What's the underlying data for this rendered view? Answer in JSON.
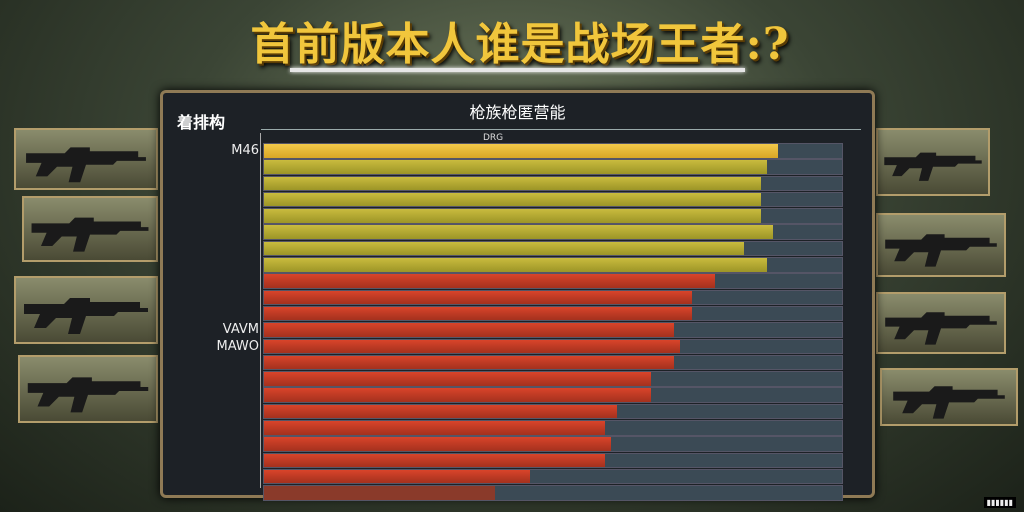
{
  "title": "首前版本人谁是战场王者:?",
  "panel": {
    "title": "枪族枪匿营能",
    "left_header": "着排构",
    "sub_label": "DRG"
  },
  "chart_data": {
    "type": "bar",
    "orientation": "horizontal",
    "categories": [
      "M46",
      "",
      "",
      "",
      "",
      "",
      "",
      "",
      "",
      "",
      "",
      "VAVM",
      "MAWO",
      "",
      "",
      "",
      "",
      "",
      "",
      "",
      "",
      ""
    ],
    "values": [
      89,
      87,
      86,
      86,
      86,
      88,
      83,
      87,
      78,
      74,
      74,
      71,
      72,
      71,
      67,
      67,
      61,
      59,
      60,
      59,
      46,
      40
    ],
    "series_colors": [
      "#f2c94a",
      "#c9bb3e",
      "#c9bb3e",
      "#c9bb3e",
      "#c9bb3e",
      "#c9bb3e",
      "#c9bb3e",
      "#c9bb3e",
      "#d9442a",
      "#d9442a",
      "#d9442a",
      "#d9442a",
      "#d9442a",
      "#d9442a",
      "#d9442a",
      "#d9442a",
      "#d9442a",
      "#d9442a",
      "#d9442a",
      "#d9442a",
      "#d9442a",
      "#8a3a2a"
    ],
    "grid": true
  },
  "guns": [
    "assault-rifle-icon",
    "assault-rifle-icon",
    "assault-rifle-icon",
    "assault-rifle-icon",
    "assault-rifle-icon",
    "assault-rifle-icon",
    "assault-rifle-icon",
    "sniper-rifle-icon"
  ]
}
